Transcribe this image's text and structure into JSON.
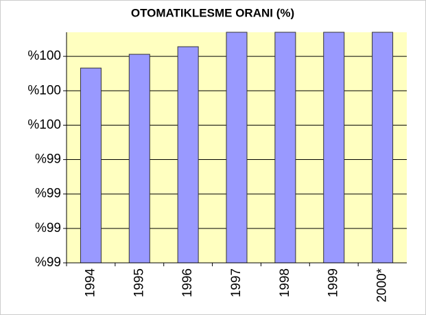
{
  "chart_data": {
    "type": "bar",
    "title": "OTOMATIKLESME ORANI (%)",
    "categories": [
      "1994",
      "1995",
      "1996",
      "1997",
      "1998",
      "1999",
      "2000*"
    ],
    "values": [
      99.716,
      99.756,
      99.778,
      99.82,
      99.82,
      99.82,
      99.82
    ],
    "color": "#9999ff",
    "ylim": [
      99.15,
      99.82
    ],
    "yticks": [
      {
        "value": 99.15,
        "label": "%99"
      },
      {
        "value": 99.25,
        "label": "%99"
      },
      {
        "value": 99.35,
        "label": "%99"
      },
      {
        "value": 99.45,
        "label": "%99"
      },
      {
        "value": 99.55,
        "label": "%100"
      },
      {
        "value": 99.65,
        "label": "%100"
      },
      {
        "value": 99.75,
        "label": "%100"
      }
    ],
    "grid": true
  }
}
